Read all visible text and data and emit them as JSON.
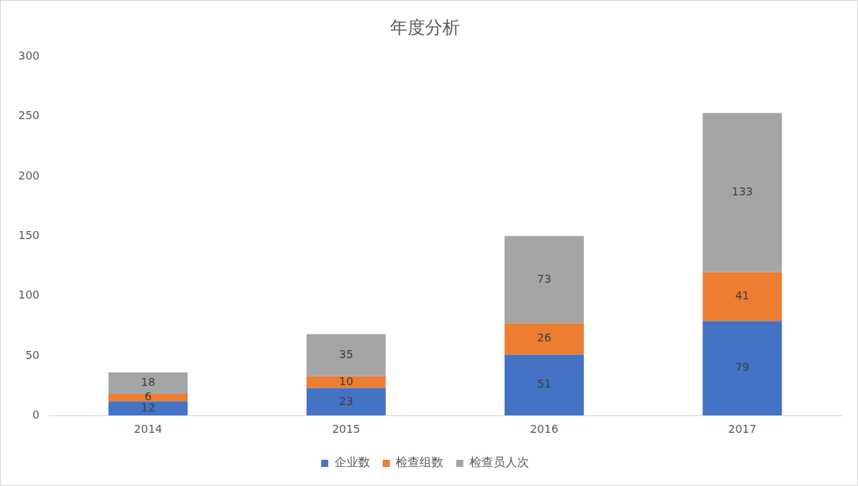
{
  "chart_data": {
    "type": "bar",
    "title": "年度分析",
    "categories": [
      "2014",
      "2015",
      "2016",
      "2017"
    ],
    "stacked": true,
    "series": [
      {
        "name": "企业数",
        "color": "#4472c4",
        "values": [
          12,
          23,
          51,
          79
        ]
      },
      {
        "name": "检查组数",
        "color": "#ed7d31",
        "values": [
          6,
          10,
          26,
          41
        ]
      },
      {
        "name": "检查员人次",
        "color": "#a5a5a5",
        "values": [
          18,
          35,
          73,
          133
        ]
      }
    ],
    "ylim": [
      0,
      300
    ],
    "yticks": [
      0,
      50,
      100,
      150,
      200,
      250,
      300
    ],
    "grid": false,
    "legend": "bottom",
    "data_labels": true
  }
}
